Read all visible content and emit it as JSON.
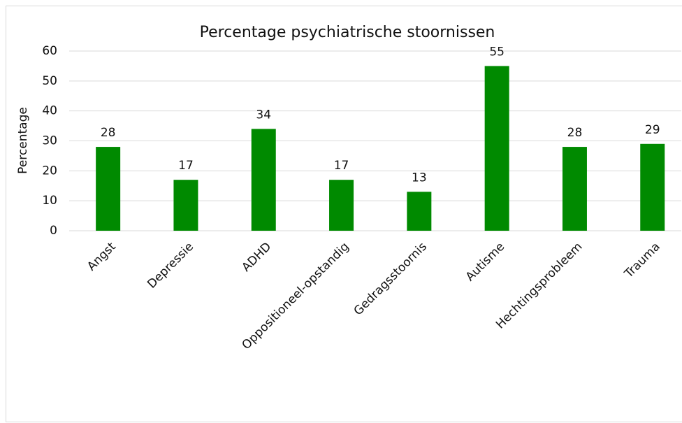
{
  "chart_data": {
    "type": "bar",
    "title": "Percentage psychiatrische stoornissen",
    "y_label": "Percentage",
    "categories": [
      "Angst",
      "Depressie",
      "ADHD",
      "Oppositioneel-opstandig",
      "Gedragsstoornis",
      "Autisme",
      "Hechtingsprobleem",
      "Trauma"
    ],
    "values": [
      28,
      17,
      34,
      17,
      13,
      55,
      28,
      29
    ],
    "color": "#008a00",
    "ylim": [
      0,
      60
    ],
    "yticks": [
      0,
      10,
      20,
      30,
      40,
      50,
      60
    ],
    "grid": true
  }
}
